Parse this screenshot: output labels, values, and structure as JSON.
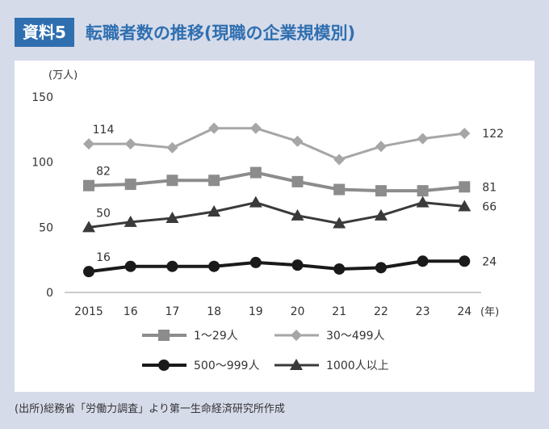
{
  "header": {
    "badge": "資料5",
    "title": "転職者数の推移(現職の企業規模別)"
  },
  "source": "(出所)総務省「労働力調査」より第一生命経済研究所作成",
  "chart_data": {
    "type": "line",
    "ylabel": "(万人)",
    "xlabel": "(年)",
    "ylim": [
      0,
      150
    ],
    "yticks": [
      0,
      50,
      100,
      150
    ],
    "categories": [
      "2015",
      "16",
      "17",
      "18",
      "19",
      "20",
      "21",
      "22",
      "23",
      "24"
    ],
    "series": [
      {
        "name": "1〜29人",
        "marker": "square",
        "color": "#8c8c8c",
        "width": 4,
        "values": [
          82,
          83,
          86,
          86,
          92,
          85,
          79,
          78,
          78,
          81
        ],
        "labels": {
          "first": "82",
          "last": "81"
        }
      },
      {
        "name": "30〜499人",
        "marker": "diamond",
        "color": "#a6a6a6",
        "width": 3,
        "values": [
          114,
          114,
          111,
          126,
          126,
          116,
          102,
          112,
          118,
          122
        ],
        "labels": {
          "first": "114",
          "last": "122"
        }
      },
      {
        "name": "500〜999人",
        "marker": "circle",
        "color": "#1a1a1a",
        "width": 4,
        "values": [
          16,
          20,
          20,
          20,
          23,
          21,
          18,
          19,
          24,
          24
        ],
        "labels": {
          "first": "16",
          "last": "24"
        }
      },
      {
        "name": "1000人以上",
        "marker": "triangle",
        "color": "#3a3a3a",
        "width": 3,
        "values": [
          50,
          54,
          57,
          62,
          69,
          59,
          53,
          59,
          69,
          66
        ],
        "labels": {
          "first": "50",
          "last": "66"
        }
      }
    ],
    "legend": "bottom"
  }
}
